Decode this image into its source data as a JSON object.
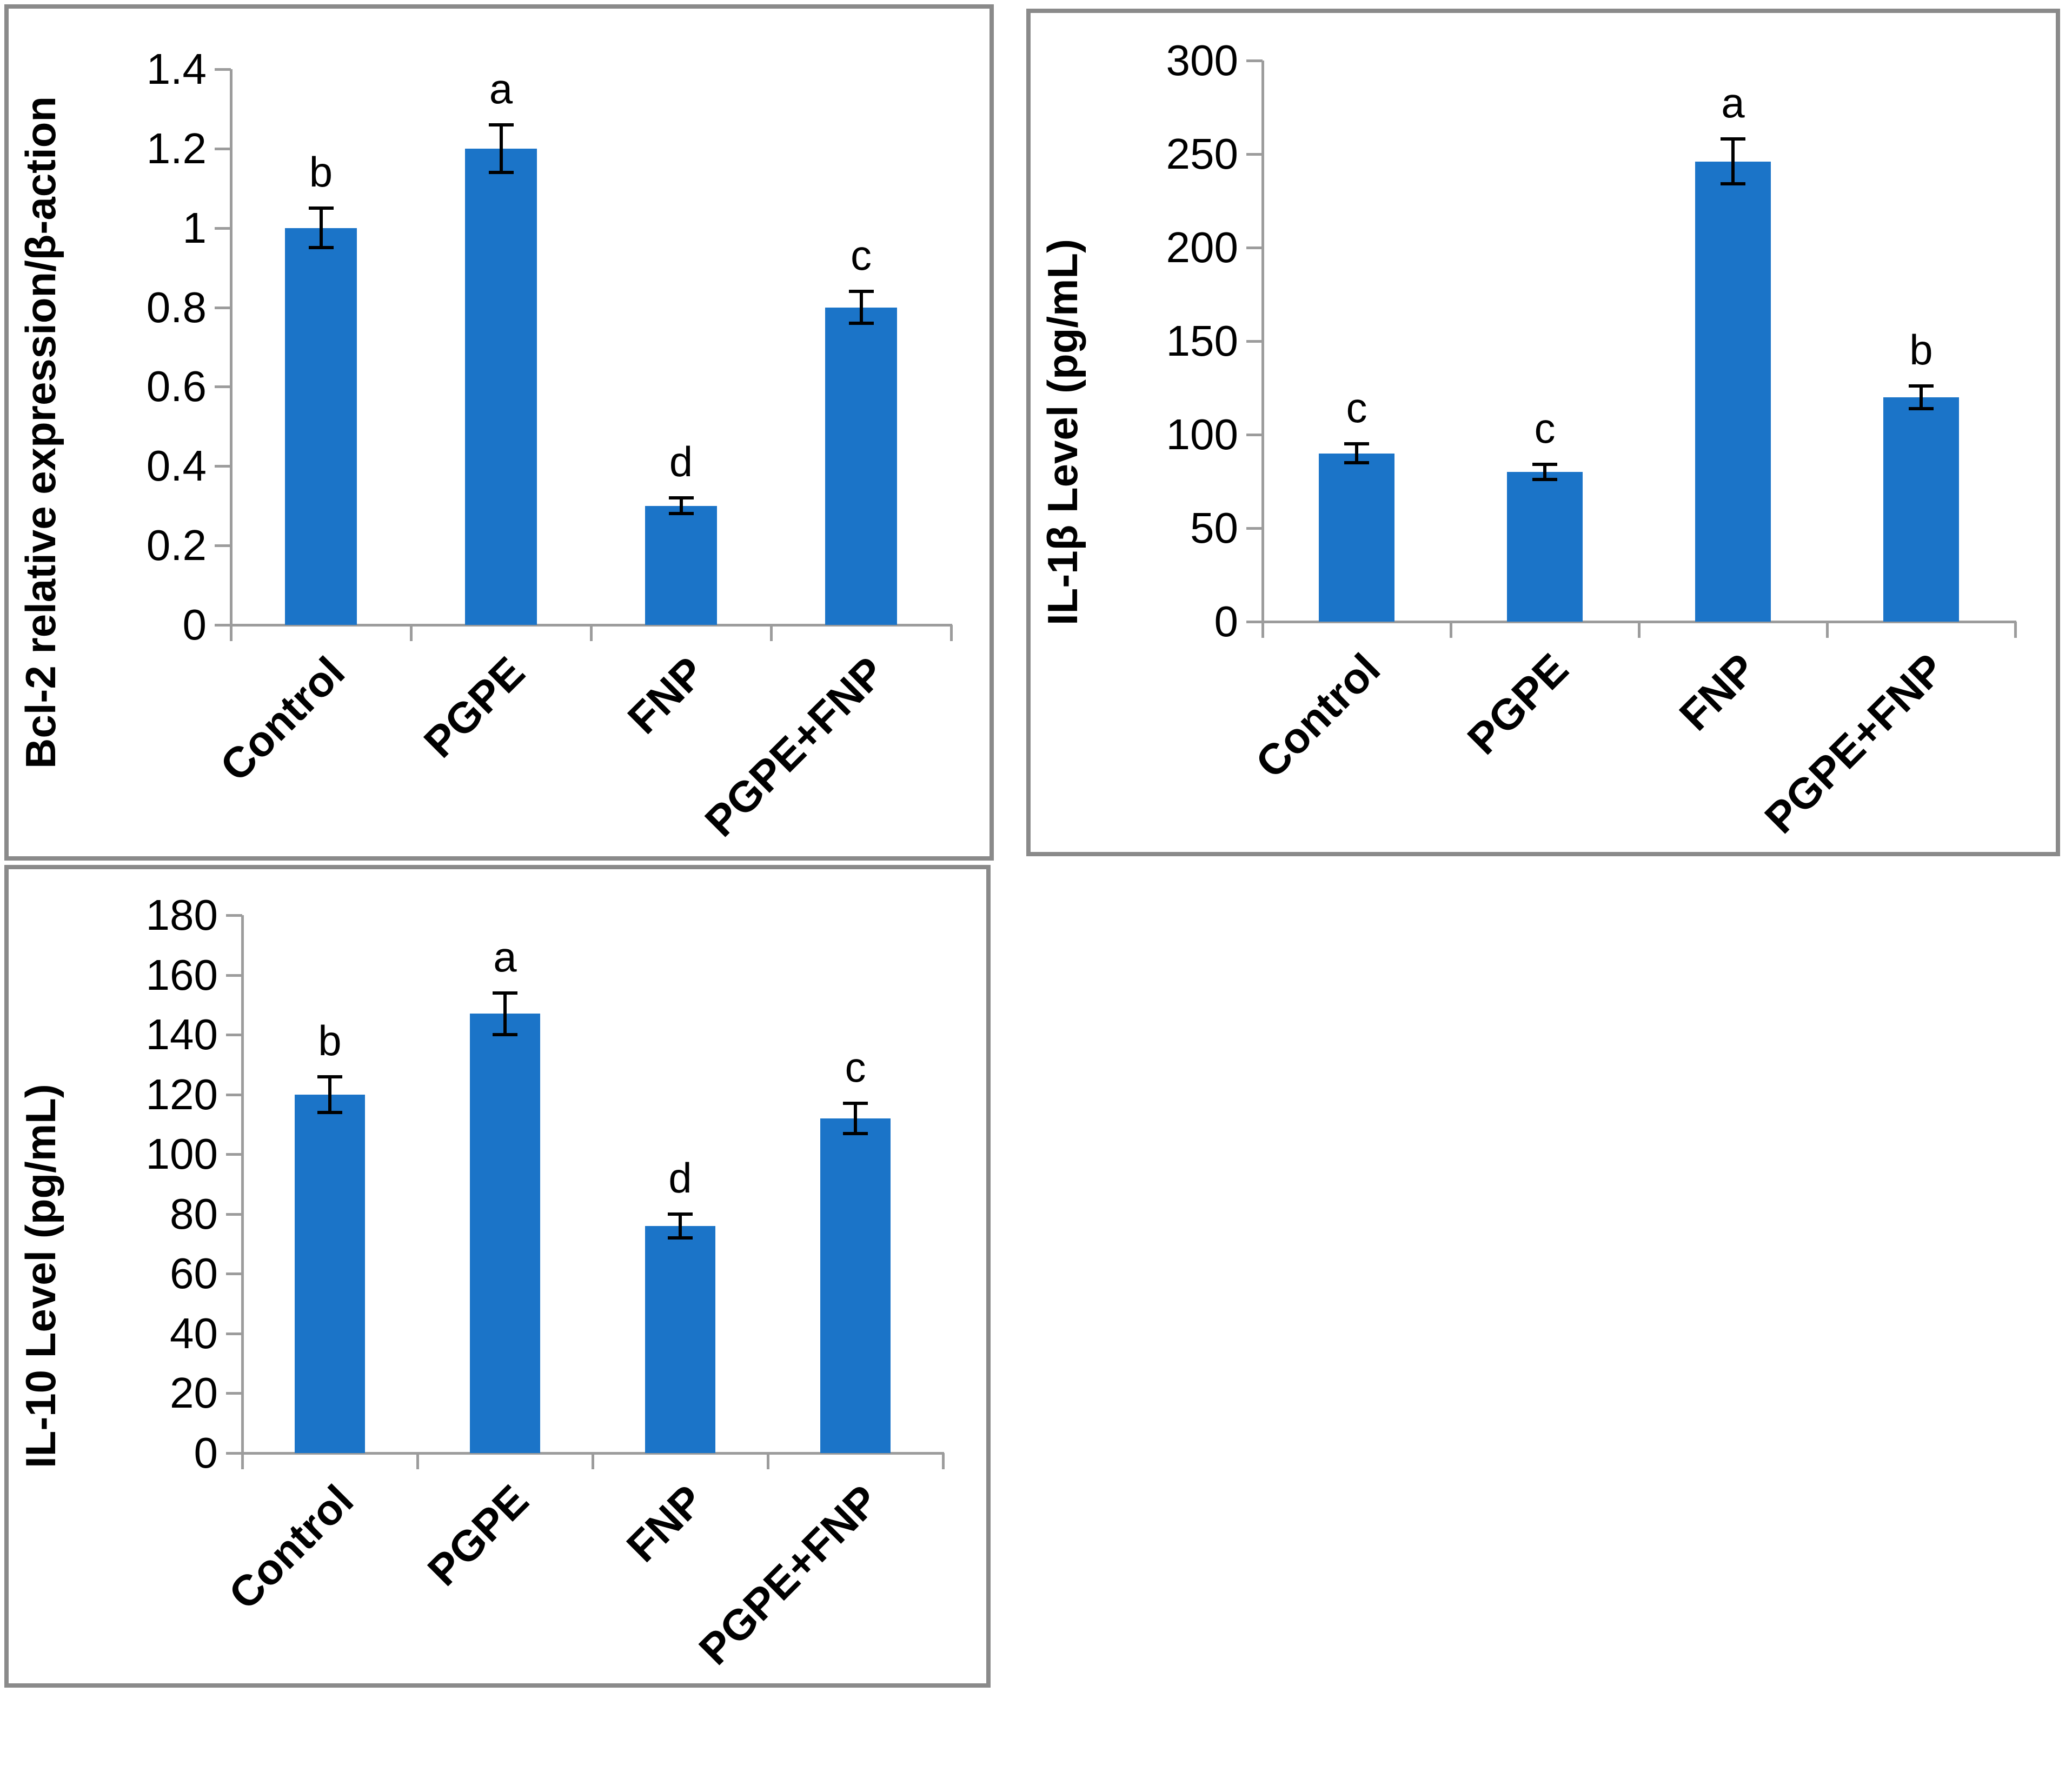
{
  "colors": {
    "bar": "#1B74C8",
    "axis": "#9C9C9C",
    "panel_border": "#8A8A8A",
    "text": "#000000"
  },
  "chart_data": [
    {
      "type": "bar",
      "ylabel": "Bcl-2 relative expression/β-action",
      "xlabel": "",
      "categories": [
        "Control",
        "PGPE",
        "FNP",
        "PGPE+FNP"
      ],
      "values": [
        1.0,
        1.2,
        0.3,
        0.8
      ],
      "errors": [
        0.05,
        0.06,
        0.02,
        0.04
      ],
      "sig_letters": [
        "b",
        "a",
        "d",
        "c"
      ],
      "ylim": [
        0,
        1.4
      ],
      "ytick_labels": [
        "0",
        "0.2",
        "0.4",
        "0.6",
        "0.8",
        "1",
        "1.2",
        "1.4"
      ],
      "grid": false,
      "legend": "none"
    },
    {
      "type": "bar",
      "ylabel": "IL-1β Level (pg/mL)",
      "xlabel": "",
      "categories": [
        "Control",
        "PGPE",
        "FNP",
        "PGPE+FNP"
      ],
      "values": [
        90,
        80,
        246,
        120
      ],
      "errors": [
        5,
        4,
        12,
        6
      ],
      "sig_letters": [
        "c",
        "c",
        "a",
        "b"
      ],
      "ylim": [
        0,
        300
      ],
      "ytick_labels": [
        "0",
        "50",
        "100",
        "150",
        "200",
        "250",
        "300"
      ],
      "grid": false,
      "legend": "none"
    },
    {
      "type": "bar",
      "ylabel": "IL-10 Level (pg/mL)",
      "xlabel": "",
      "categories": [
        "Control",
        "PGPE",
        "FNP",
        "PGPE+FNP"
      ],
      "values": [
        120,
        147,
        76,
        112
      ],
      "errors": [
        6,
        7,
        4,
        5
      ],
      "sig_letters": [
        "b",
        "a",
        "d",
        "c"
      ],
      "ylim": [
        0,
        180
      ],
      "ytick_labels": [
        "0",
        "20",
        "40",
        "60",
        "80",
        "100",
        "120",
        "140",
        "160",
        "180"
      ],
      "grid": false,
      "legend": "none"
    }
  ]
}
